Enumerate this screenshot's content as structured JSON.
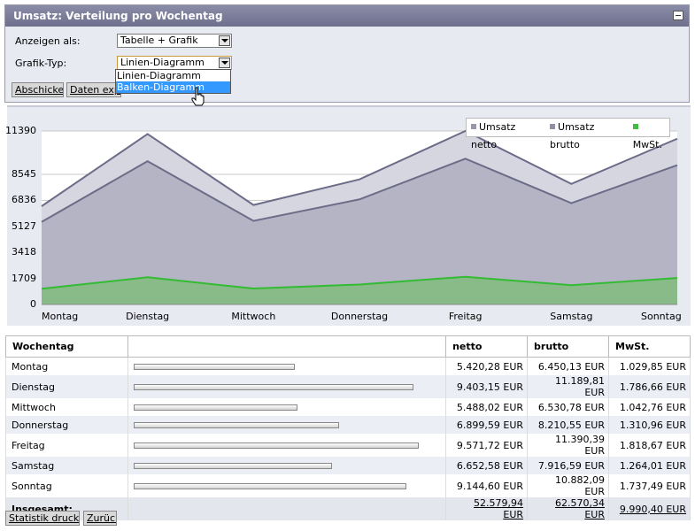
{
  "panel": {
    "title": "Umsatz: Verteilung pro Wochentag",
    "form": {
      "display_label": "Anzeigen als:",
      "display_value": "Tabelle + Grafik",
      "chart_type_label": "Grafik-Typ:",
      "chart_type_value": "Linien-Diagramm",
      "chart_type_options": [
        "Linien-Diagramm",
        "Balken-Diagramm"
      ],
      "highlighted_option": "Balken-Diagramm"
    },
    "submit_label": "Abschicken",
    "export_label": "Daten exportieren"
  },
  "chart_data": {
    "type": "area",
    "categories": [
      "Montag",
      "Dienstag",
      "Mittwoch",
      "Donnerstag",
      "Freitag",
      "Samstag",
      "Sonntag"
    ],
    "y_ticks": [
      "11390",
      "8545",
      "6836",
      "5127",
      "3418",
      "1709",
      "0"
    ],
    "ylim": [
      0,
      11390
    ],
    "legend_position": "top-right",
    "series": [
      {
        "name": "Umsatz netto",
        "color": "#9898aa",
        "values": [
          5420.28,
          9403.15,
          5488.02,
          6899.59,
          9571.72,
          6652.58,
          9144.6
        ]
      },
      {
        "name": "Umsatz brutto",
        "color": "#9090a4",
        "values": [
          6450.13,
          11189.81,
          6530.78,
          8210.55,
          11390.39,
          7916.59,
          10882.09
        ]
      },
      {
        "name": "MwSt.",
        "color": "#44bb44",
        "values": [
          1029.85,
          1786.66,
          1042.76,
          1310.96,
          1818.67,
          1264.01,
          1737.49
        ]
      }
    ]
  },
  "table": {
    "headers": [
      "Wochentag",
      "",
      "netto",
      "brutto",
      "MwSt."
    ],
    "rows": [
      {
        "day": "Montag",
        "share": 0.565,
        "netto": "5.420,28 EUR",
        "brutto": "6.450,13 EUR",
        "mwst": "1.029,85 EUR"
      },
      {
        "day": "Dienstag",
        "share": 0.982,
        "netto": "9.403,15 EUR",
        "brutto": "11.189,81 EUR",
        "mwst": "1.786,66 EUR"
      },
      {
        "day": "Mittwoch",
        "share": 0.573,
        "netto": "5.488,02 EUR",
        "brutto": "6.530,78 EUR",
        "mwst": "1.042,76 EUR"
      },
      {
        "day": "Donnerstag",
        "share": 0.721,
        "netto": "6.899,59 EUR",
        "brutto": "8.210,55 EUR",
        "mwst": "1.310,96 EUR"
      },
      {
        "day": "Freitag",
        "share": 1.0,
        "netto": "9.571,72 EUR",
        "brutto": "11.390,39 EUR",
        "mwst": "1.818,67 EUR"
      },
      {
        "day": "Samstag",
        "share": 0.695,
        "netto": "6.652,58 EUR",
        "brutto": "7.916,59 EUR",
        "mwst": "1.264,01 EUR"
      },
      {
        "day": "Sonntag",
        "share": 0.955,
        "netto": "9.144,60 EUR",
        "brutto": "10.882,09 EUR",
        "mwst": "1.737,49 EUR"
      }
    ],
    "total": {
      "label": "Insgesamt:",
      "netto": "52.579,94 EUR",
      "brutto": "62.570,34 EUR",
      "mwst": "9.990,40 EUR"
    }
  },
  "footer": {
    "print_label": "Statistik drucken",
    "back_label": "Zurück"
  }
}
